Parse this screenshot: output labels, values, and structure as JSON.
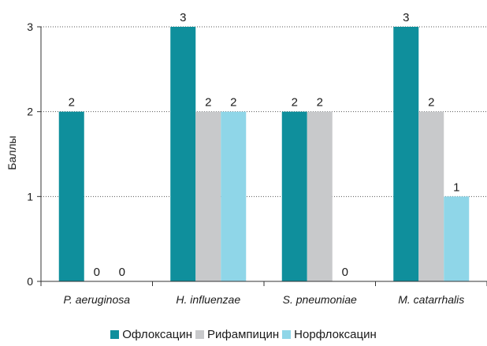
{
  "chart_data": {
    "type": "bar",
    "categories": [
      "P. aeruginosa",
      "H. influenzae",
      "S. pneumoniae",
      "M. catarrhalis"
    ],
    "series": [
      {
        "name": "Офлоксацин",
        "color": "#0f8f9c",
        "values": [
          2,
          3,
          2,
          3
        ]
      },
      {
        "name": "Рифампицин",
        "color": "#c8c9cb",
        "values": [
          0,
          2,
          2,
          2
        ]
      },
      {
        "name": "Норфлоксацин",
        "color": "#8fd6e8",
        "values": [
          0,
          2,
          0,
          1
        ]
      }
    ],
    "ylabel": "Баллы",
    "ylim": [
      0,
      3
    ],
    "yticks": [
      "0",
      "1",
      "2",
      "3"
    ],
    "grid": "dotted horizontal",
    "legend_position": "bottom"
  }
}
